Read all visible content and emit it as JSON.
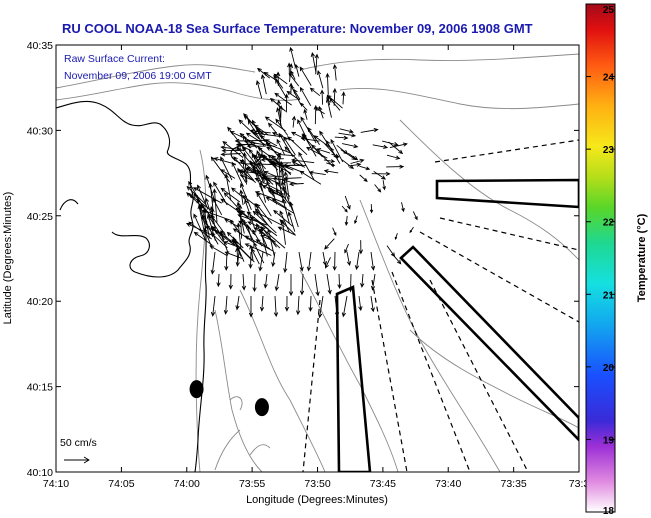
{
  "title": "RU COOL  NOAA-18  Sea Surface Temperature:  November 09, 2006 1908 GMT",
  "annotations": {
    "current_title": "Raw Surface Current:",
    "current_time": "November 09, 2006 19:00 GMT",
    "scale_label": "50 cm/s"
  },
  "chart_data": {
    "type": "vector-map",
    "xlabel": "Longitude (Degrees:Minutes)",
    "ylabel": "Latitude (Degrees:Minutes)",
    "x_ticks": [
      "74:10",
      "74:05",
      "74:00",
      "73:55",
      "73:50",
      "73:45",
      "73:40",
      "73:35",
      "73:3"
    ],
    "x_tick_values": [
      -74.1667,
      -74.0833,
      -74.0,
      -73.9167,
      -73.8333,
      -73.75,
      -73.6667,
      -73.5833,
      -73.5
    ],
    "y_ticks": [
      "40:10",
      "40:15",
      "40:20",
      "40:25",
      "40:30",
      "40:35"
    ],
    "y_tick_values": [
      40.1667,
      40.25,
      40.3333,
      40.4167,
      40.5,
      40.5833
    ],
    "xlim": [
      -74.1667,
      -73.5
    ],
    "ylim": [
      40.1667,
      40.5833
    ],
    "colorbar": {
      "label": "Temperature (°C)",
      "range": [
        18,
        25
      ],
      "ticks": [
        "18",
        "19",
        "20",
        "21",
        "22",
        "23",
        "24",
        "25"
      ]
    },
    "scale_vector_cm_s": 50,
    "markers": [
      {
        "lon": -73.9875,
        "lat": 40.2475
      },
      {
        "lon": -73.9042,
        "lat": 40.23
      }
    ]
  },
  "colors": {
    "title": "#1a1ab0",
    "annotation": "#1a1ab0",
    "vectors": "#000000",
    "contours": "#888888",
    "coast": "#000000"
  }
}
